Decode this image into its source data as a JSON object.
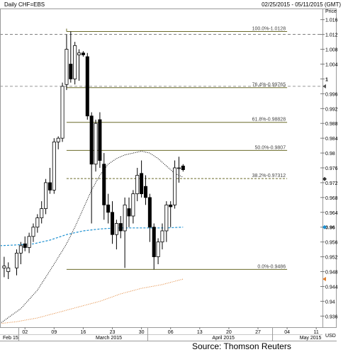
{
  "header": {
    "title": "Daily CHF=EBS",
    "date_range": "02/25/2015 - 05/11/2015 (GMT)"
  },
  "source": "Source: Thomson Reuters",
  "chart_data": {
    "type": "candlestick",
    "title": "Daily CHF=EBS",
    "y_axis": {
      "label": "Price",
      "unit": "USD",
      "position": "right",
      "ylim": [
        0.933,
        1.019
      ],
      "ticks": [
        "0.936",
        "0.94",
        "0.944",
        "0.948",
        "0.952",
        "0.956",
        "0.96",
        "0.964",
        "0.968",
        "0.972",
        "0.976",
        "0.98",
        "0.984",
        "0.988",
        "0.992",
        "0.996",
        "1",
        "1.004",
        "1.008",
        "1.012",
        "1.016"
      ],
      "bold_ticks": [
        "0.96",
        "1"
      ]
    },
    "x_axis": {
      "tick_labels": [
        {
          "text": "02",
          "day": 2
        },
        {
          "text": "09",
          "day": 9
        },
        {
          "text": "16",
          "day": 16
        },
        {
          "text": "23",
          "day": 23
        },
        {
          "text": "30",
          "day": 30
        },
        {
          "text": "06",
          "day": 37
        },
        {
          "text": "13",
          "day": 44
        },
        {
          "text": "20",
          "day": 51
        },
        {
          "text": "27",
          "day": 58
        },
        {
          "text": "04",
          "day": 65
        },
        {
          "text": "11",
          "day": 72
        }
      ],
      "month_labels": [
        {
          "text": "Feb 15",
          "day": -4
        },
        {
          "text": "March 2015",
          "day": 19
        },
        {
          "text": "April 2015",
          "day": 47
        },
        {
          "text": "May 2015",
          "day": 68
        }
      ],
      "dividers_day": [
        0.5,
        31.5,
        61.5
      ],
      "xlim": [
        -4,
        73.5
      ]
    },
    "candles": [
      {
        "day": -3,
        "open": 0.949,
        "high": 0.952,
        "low": 0.9465,
        "close": 0.9495
      },
      {
        "day": -2,
        "open": 0.948,
        "high": 0.9505,
        "low": 0.946,
        "close": 0.949
      },
      {
        "day": 0,
        "open": 0.949,
        "high": 0.954,
        "low": 0.947,
        "close": 0.953
      },
      {
        "day": 1,
        "open": 0.953,
        "high": 0.956,
        "low": 0.95,
        "close": 0.955
      },
      {
        "day": 2,
        "open": 0.9555,
        "high": 0.9575,
        "low": 0.9535,
        "close": 0.9545
      },
      {
        "day": 3,
        "open": 0.9545,
        "high": 0.9585,
        "low": 0.953,
        "close": 0.9575
      },
      {
        "day": 4,
        "open": 0.9575,
        "high": 0.961,
        "low": 0.956,
        "close": 0.96
      },
      {
        "day": 5,
        "open": 0.96,
        "high": 0.9635,
        "low": 0.9585,
        "close": 0.9625
      },
      {
        "day": 6,
        "open": 0.9625,
        "high": 0.967,
        "low": 0.961,
        "close": 0.965
      },
      {
        "day": 7,
        "open": 0.965,
        "high": 0.973,
        "low": 0.9635,
        "close": 0.972
      },
      {
        "day": 8,
        "open": 0.972,
        "high": 0.976,
        "low": 0.969,
        "close": 0.97
      },
      {
        "day": 9,
        "open": 0.97,
        "high": 0.984,
        "low": 0.969,
        "close": 0.983
      },
      {
        "day": 10,
        "open": 0.983,
        "high": 0.9845,
        "low": 0.981,
        "close": 0.984
      },
      {
        "day": 11,
        "open": 0.984,
        "high": 0.999,
        "low": 0.983,
        "close": 0.998
      },
      {
        "day": 12,
        "open": 0.9985,
        "high": 1.012,
        "low": 0.997,
        "close": 1.008
      },
      {
        "day": 13,
        "open": 1.004,
        "high": 1.0128,
        "low": 0.999,
        "close": 1.0
      },
      {
        "day": 14,
        "open": 1.0,
        "high": 1.01,
        "low": 0.9985,
        "close": 1.009
      },
      {
        "day": 15,
        "open": 1.0065,
        "high": 1.008,
        "low": 0.9995,
        "close": 1.007
      },
      {
        "day": 16,
        "open": 1.007,
        "high": 1.0075,
        "low": 1.006,
        "close": 1.0065
      },
      {
        "day": 17,
        "open": 1.006,
        "high": 1.007,
        "low": 0.989,
        "close": 0.99
      },
      {
        "day": 18,
        "open": 0.99,
        "high": 0.991,
        "low": 0.961,
        "close": 0.977
      },
      {
        "day": 19,
        "open": 0.977,
        "high": 0.989,
        "low": 0.975,
        "close": 0.988
      },
      {
        "day": 20,
        "open": 0.989,
        "high": 0.991,
        "low": 0.976,
        "close": 0.978
      },
      {
        "day": 21,
        "open": 0.977,
        "high": 0.98,
        "low": 0.962,
        "close": 0.966
      },
      {
        "day": 22,
        "open": 0.966,
        "high": 0.969,
        "low": 0.961,
        "close": 0.964
      },
      {
        "day": 23,
        "open": 0.964,
        "high": 0.967,
        "low": 0.9555,
        "close": 0.958
      },
      {
        "day": 24,
        "open": 0.958,
        "high": 0.962,
        "low": 0.954,
        "close": 0.961
      },
      {
        "day": 25,
        "open": 0.961,
        "high": 0.963,
        "low": 0.957,
        "close": 0.959
      },
      {
        "day": 26,
        "open": 0.959,
        "high": 0.968,
        "low": 0.949,
        "close": 0.966
      },
      {
        "day": 27,
        "open": 0.965,
        "high": 0.968,
        "low": 0.96,
        "close": 0.963
      },
      {
        "day": 28,
        "open": 0.963,
        "high": 0.97,
        "low": 0.961,
        "close": 0.969
      },
      {
        "day": 29,
        "open": 0.969,
        "high": 0.976,
        "low": 0.967,
        "close": 0.974
      },
      {
        "day": 30,
        "open": 0.9745,
        "high": 0.978,
        "low": 0.968,
        "close": 0.969
      },
      {
        "day": 31,
        "open": 0.971,
        "high": 0.974,
        "low": 0.966,
        "close": 0.968
      },
      {
        "day": 32,
        "open": 0.968,
        "high": 0.969,
        "low": 0.956,
        "close": 0.96
      },
      {
        "day": 33,
        "open": 0.96,
        "high": 0.961,
        "low": 0.9486,
        "close": 0.952
      },
      {
        "day": 34,
        "open": 0.952,
        "high": 0.957,
        "low": 0.95,
        "close": 0.956
      },
      {
        "day": 35,
        "open": 0.956,
        "high": 0.961,
        "low": 0.954,
        "close": 0.959
      },
      {
        "day": 36,
        "open": 0.959,
        "high": 0.967,
        "low": 0.956,
        "close": 0.966
      },
      {
        "day": 37,
        "open": 0.966,
        "high": 0.967,
        "low": 0.96,
        "close": 0.9655
      },
      {
        "day": 38,
        "open": 0.966,
        "high": 0.978,
        "low": 0.965,
        "close": 0.976
      },
      {
        "day": 39,
        "open": 0.976,
        "high": 0.979,
        "low": 0.972,
        "close": 0.976
      },
      {
        "day": 40,
        "open": 0.9765,
        "high": 0.977,
        "low": 0.975,
        "close": 0.9755
      }
    ],
    "moving_averages": [
      {
        "color": "#000000",
        "style": "dotted",
        "points": [
          [
            -4,
            0.934
          ],
          [
            1,
            0.938
          ],
          [
            5,
            0.943
          ],
          [
            9,
            0.95
          ],
          [
            12,
            0.9555
          ],
          [
            14,
            0.96
          ],
          [
            16,
            0.965
          ],
          [
            18,
            0.97
          ],
          [
            20,
            0.974
          ],
          [
            22,
            0.977
          ],
          [
            24,
            0.9785
          ],
          [
            26,
            0.9795
          ],
          [
            28,
            0.98
          ],
          [
            30,
            0.9805
          ],
          [
            32,
            0.98
          ],
          [
            34,
            0.9785
          ],
          [
            36,
            0.9765
          ],
          [
            38,
            0.9745
          ],
          [
            40,
            0.9735
          ]
        ]
      },
      {
        "color": "#1a8fd0",
        "style": "dashed",
        "points": [
          [
            -4,
            0.955
          ],
          [
            0,
            0.9552
          ],
          [
            4,
            0.9555
          ],
          [
            8,
            0.9565
          ],
          [
            12,
            0.958
          ],
          [
            16,
            0.959
          ],
          [
            20,
            0.9595
          ],
          [
            24,
            0.9598
          ],
          [
            28,
            0.9598
          ],
          [
            32,
            0.9598
          ],
          [
            36,
            0.9598
          ],
          [
            40,
            0.96
          ]
        ]
      },
      {
        "color": "#e08030",
        "style": "dotted",
        "points": [
          [
            -4,
            0.934
          ],
          [
            0,
            0.9345
          ],
          [
            5,
            0.9355
          ],
          [
            10,
            0.937
          ],
          [
            15,
            0.9385
          ],
          [
            20,
            0.94
          ],
          [
            25,
            0.942
          ],
          [
            30,
            0.9435
          ],
          [
            35,
            0.9445
          ],
          [
            40,
            0.946
          ]
        ]
      }
    ],
    "fibonacci": {
      "color": "#6b6b2a",
      "start_day": 12,
      "end_day": 65,
      "levels": [
        {
          "label": "100.0%-1.0128",
          "value": 1.0128
        },
        {
          "label": "76.4%-0.99765",
          "value": 0.99765
        },
        {
          "label": "61.8%-0.98828",
          "value": 0.98828
        },
        {
          "label": "50.0%-0.9807",
          "value": 0.9807
        },
        {
          "label": "38.2%-0.97312",
          "value": 0.97312
        },
        {
          "label": "0.0%-0.9486",
          "value": 0.9486
        }
      ]
    },
    "dashed_reference_lines": [
      {
        "value": 1.012,
        "color": "#555555"
      },
      {
        "value": 0.998,
        "color": "#777777"
      }
    ],
    "axis_markers": [
      {
        "value": 0.998,
        "shape": "triangle",
        "color": "#555555"
      },
      {
        "value": 0.973,
        "shape": "diamond",
        "color": "#333333"
      },
      {
        "value": 0.96,
        "shape": "diamond",
        "color": "#1a8fd0"
      },
      {
        "value": 0.946,
        "shape": "triangle",
        "color": "#e08030"
      }
    ],
    "grid": true,
    "legend": "none"
  }
}
